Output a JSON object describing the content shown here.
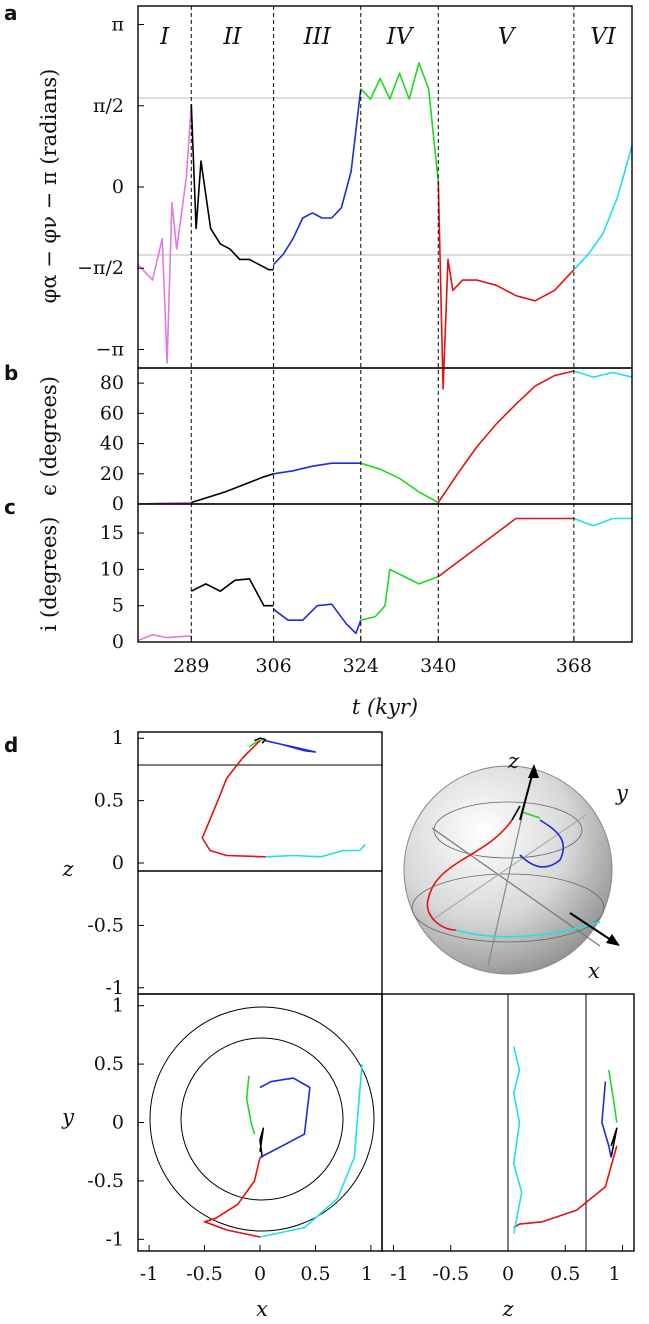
{
  "colors": {
    "I": "#e07ae0",
    "II": "#000000",
    "III": "#1f2bd6",
    "IV": "#20d820",
    "V": "#e51010",
    "VI": "#20e0e8"
  },
  "time_panels": {
    "phase_roman": [
      "I",
      "II",
      "III",
      "IV",
      "V",
      "VI"
    ],
    "boundaries_kyr": [
      289,
      306,
      324,
      340,
      368
    ],
    "x_ticks": [
      "289",
      "306",
      "324",
      "340",
      "368"
    ],
    "x_label": "t (kyr)",
    "panel_a": {
      "letter": "a",
      "y_label": "φα − φν − π (radians)",
      "y_ticks": [
        "π",
        "π/2",
        "0",
        "−π/2",
        "−π"
      ]
    },
    "panel_b": {
      "letter": "b",
      "y_label": "ϵ (degrees)",
      "y_ticks": [
        "80",
        "60",
        "40",
        "20",
        "0"
      ]
    },
    "panel_c": {
      "letter": "c",
      "y_label": "i (degrees)",
      "y_ticks": [
        "15",
        "10",
        "5",
        "0"
      ]
    }
  },
  "space_panels": {
    "letter": "d",
    "xz": {
      "y_label": "z",
      "y_ticks": [
        "1",
        "0.5",
        "0",
        "-0.5",
        "-1"
      ]
    },
    "xy": {
      "y_label": "y",
      "y_ticks": [
        "1",
        "0.5",
        "0",
        "-0.5",
        "-1"
      ],
      "x_ticks": [
        "-1",
        "-0.5",
        "0",
        "0.5",
        "1"
      ],
      "x_label": "x"
    },
    "zy": {
      "x_ticks": [
        "-1",
        "-0.5",
        "0",
        "0.5",
        "1"
      ],
      "x_label": "z"
    },
    "sphere": {
      "axis_x": "x",
      "axis_y": "y",
      "axis_z": "z"
    }
  },
  "chart_data": [
    {
      "type": "line",
      "panel": "a",
      "xlabel": "t (kyr)",
      "ylabel": "φα − φν − π (radians)",
      "xlim": [
        278,
        380
      ],
      "ylim": [
        -3.5,
        3.5
      ],
      "series": [
        {
          "phase": "I",
          "x": [
            278,
            281,
            283,
            284,
            285,
            286,
            287,
            288,
            289
          ],
          "y": [
            -1.5,
            -1.8,
            -1.0,
            -3.4,
            -0.3,
            -1.2,
            -0.5,
            0.2,
            1.6
          ]
        },
        {
          "phase": "II",
          "x": [
            289,
            290,
            291,
            293,
            295,
            297,
            299,
            301,
            303,
            305,
            306
          ],
          "y": [
            1.6,
            -0.8,
            0.5,
            -0.8,
            -1.1,
            -1.2,
            -1.4,
            -1.4,
            -1.5,
            -1.6,
            -1.6
          ]
        },
        {
          "phase": "III",
          "x": [
            306,
            308,
            310,
            312,
            314,
            316,
            318,
            320,
            322,
            324
          ],
          "y": [
            -1.5,
            -1.3,
            -1.0,
            -0.6,
            -0.5,
            -0.6,
            -0.6,
            -0.4,
            0.3,
            1.9
          ]
        },
        {
          "phase": "IV",
          "x": [
            324,
            326,
            328,
            330,
            332,
            334,
            336,
            338,
            340
          ],
          "y": [
            1.9,
            1.7,
            2.1,
            1.7,
            2.2,
            1.7,
            2.4,
            1.9,
            0.1
          ]
        },
        {
          "phase": "V",
          "x": [
            340,
            341,
            342,
            343,
            345,
            348,
            352,
            356,
            360,
            364,
            368
          ],
          "y": [
            0.1,
            -3.9,
            -1.4,
            -2.0,
            -1.8,
            -1.8,
            -1.9,
            -2.1,
            -2.2,
            -2.0,
            -1.6
          ]
        },
        {
          "phase": "VI",
          "x": [
            368,
            371,
            374,
            377,
            380
          ],
          "y": [
            -1.6,
            -1.3,
            -0.9,
            -0.2,
            0.8
          ]
        }
      ]
    },
    {
      "type": "line",
      "panel": "b",
      "xlabel": "t (kyr)",
      "ylabel": "ϵ (degrees)",
      "xlim": [
        278,
        380
      ],
      "ylim": [
        0,
        90
      ],
      "series": [
        {
          "phase": "I",
          "x": [
            278,
            283,
            289
          ],
          "y": [
            0,
            0.5,
            1
          ]
        },
        {
          "phase": "II",
          "x": [
            289,
            292,
            296,
            300,
            304,
            306
          ],
          "y": [
            1,
            4,
            8,
            13,
            18,
            20
          ]
        },
        {
          "phase": "III",
          "x": [
            306,
            310,
            314,
            318,
            322,
            324
          ],
          "y": [
            20,
            22,
            25,
            27,
            27,
            27
          ]
        },
        {
          "phase": "IV",
          "x": [
            324,
            328,
            332,
            336,
            340
          ],
          "y": [
            27,
            23,
            17,
            8,
            1
          ]
        },
        {
          "phase": "V",
          "x": [
            340,
            344,
            348,
            352,
            356,
            360,
            364,
            368
          ],
          "y": [
            1,
            20,
            38,
            53,
            66,
            78,
            85,
            88
          ]
        },
        {
          "phase": "VI",
          "x": [
            368,
            372,
            376,
            380
          ],
          "y": [
            88,
            84,
            87,
            84
          ]
        }
      ]
    },
    {
      "type": "line",
      "panel": "c",
      "xlabel": "t (kyr)",
      "ylabel": "i (degrees)",
      "xlim": [
        278,
        380
      ],
      "ylim": [
        0,
        19
      ],
      "series": [
        {
          "phase": "I",
          "x": [
            278,
            281,
            284,
            288,
            289
          ],
          "y": [
            0.2,
            1.0,
            0.6,
            0.8,
            0.8
          ]
        },
        {
          "phase": "II",
          "x": [
            289,
            292,
            295,
            298,
            301,
            304,
            306
          ],
          "y": [
            7,
            8,
            7,
            8.5,
            8.7,
            5,
            5
          ]
        },
        {
          "phase": "III",
          "x": [
            306,
            309,
            312,
            315,
            318,
            321,
            323,
            324
          ],
          "y": [
            4.5,
            3,
            3,
            5,
            5.2,
            2.5,
            1.2,
            3
          ]
        },
        {
          "phase": "IV",
          "x": [
            324,
            327,
            329,
            330,
            333,
            336,
            340
          ],
          "y": [
            3,
            3.5,
            5,
            10,
            9,
            8,
            9
          ]
        },
        {
          "phase": "V",
          "x": [
            340,
            344,
            348,
            352,
            356,
            360,
            364,
            368
          ],
          "y": [
            9,
            11,
            13,
            15,
            17,
            17,
            17,
            17
          ]
        },
        {
          "phase": "VI",
          "x": [
            368,
            372,
            376,
            380
          ],
          "y": [
            17,
            16,
            17,
            17
          ]
        }
      ]
    },
    {
      "type": "line",
      "panel": "d-xz",
      "xlim": [
        -1.1,
        1.1
      ],
      "ylim": [
        -1.05,
        1.05
      ],
      "ylabel": "z",
      "series": [
        {
          "phase": "II",
          "x": [
            -0.05,
            0,
            0.05,
            0.02
          ],
          "y": [
            0.98,
            1.0,
            0.99,
            0.96
          ]
        },
        {
          "phase": "III",
          "x": [
            0.05,
            0.2,
            0.35,
            0.5,
            0.4,
            0.2
          ],
          "y": [
            0.98,
            0.95,
            0.92,
            0.89,
            0.9,
            0.95
          ]
        },
        {
          "phase": "IV",
          "x": [
            -0.1,
            -0.05,
            0.02
          ],
          "y": [
            0.93,
            0.96,
            0.99
          ]
        },
        {
          "phase": "V",
          "x": [
            0.0,
            -0.15,
            -0.3,
            -0.38,
            -0.45,
            -0.52,
            -0.45,
            -0.3,
            0.05
          ],
          "y": [
            0.98,
            0.85,
            0.68,
            0.5,
            0.35,
            0.2,
            0.1,
            0.06,
            0.05
          ]
        },
        {
          "phase": "VI",
          "x": [
            0.05,
            0.3,
            0.55,
            0.75,
            0.9,
            0.95
          ],
          "y": [
            0.05,
            0.06,
            0.05,
            0.1,
            0.1,
            0.15
          ]
        }
      ]
    },
    {
      "type": "line",
      "panel": "d-xy",
      "xlim": [
        -1.1,
        1.1
      ],
      "ylim": [
        -1.1,
        1.1
      ],
      "xlabel": "x",
      "ylabel": "y",
      "series": [
        {
          "phase": "II",
          "x": [
            0.02,
            0.0,
            0.03,
            0.0
          ],
          "y": [
            -0.3,
            -0.15,
            -0.05,
            -0.25
          ]
        },
        {
          "phase": "III",
          "x": [
            0.0,
            0.2,
            0.4,
            0.45,
            0.3,
            0.1,
            0.0
          ],
          "y": [
            -0.3,
            -0.2,
            -0.1,
            0.3,
            0.38,
            0.35,
            0.3
          ]
        },
        {
          "phase": "IV",
          "x": [
            -0.1,
            -0.12,
            -0.08,
            -0.05
          ],
          "y": [
            0.4,
            0.2,
            0.0,
            -0.1
          ]
        },
        {
          "phase": "V",
          "x": [
            0.0,
            -0.05,
            -0.2,
            -0.4,
            -0.5,
            -0.3,
            0.0
          ],
          "y": [
            -0.3,
            -0.5,
            -0.7,
            -0.82,
            -0.85,
            -0.92,
            -0.98
          ]
        },
        {
          "phase": "VI",
          "x": [
            0.0,
            0.4,
            0.7,
            0.85,
            0.92
          ],
          "y": [
            -0.98,
            -0.9,
            -0.65,
            -0.3,
            0.5
          ]
        }
      ]
    },
    {
      "type": "line",
      "panel": "d-zy",
      "xlim": [
        -1.1,
        1.1
      ],
      "ylim": [
        -1.1,
        1.1
      ],
      "xlabel": "z",
      "series": [
        {
          "phase": "II",
          "x": [
            0.9,
            0.95,
            0.9
          ],
          "y": [
            -0.2,
            -0.05,
            -0.3
          ]
        },
        {
          "phase": "III",
          "x": [
            0.85,
            0.82,
            0.88,
            0.9
          ],
          "y": [
            0.35,
            0.0,
            -0.2,
            -0.3
          ]
        },
        {
          "phase": "IV",
          "x": [
            0.88,
            0.92,
            0.95
          ],
          "y": [
            0.45,
            0.2,
            0.0
          ]
        },
        {
          "phase": "V",
          "x": [
            0.95,
            0.85,
            0.6,
            0.3,
            0.1,
            0.05
          ],
          "y": [
            -0.2,
            -0.55,
            -0.75,
            -0.85,
            -0.87,
            -0.9
          ]
        },
        {
          "phase": "VI",
          "x": [
            0.05,
            0.12,
            0.05,
            0.1,
            0.05,
            0.1,
            0.05
          ],
          "y": [
            -0.95,
            -0.6,
            -0.35,
            0.0,
            0.25,
            0.45,
            0.65
          ]
        }
      ]
    }
  ]
}
